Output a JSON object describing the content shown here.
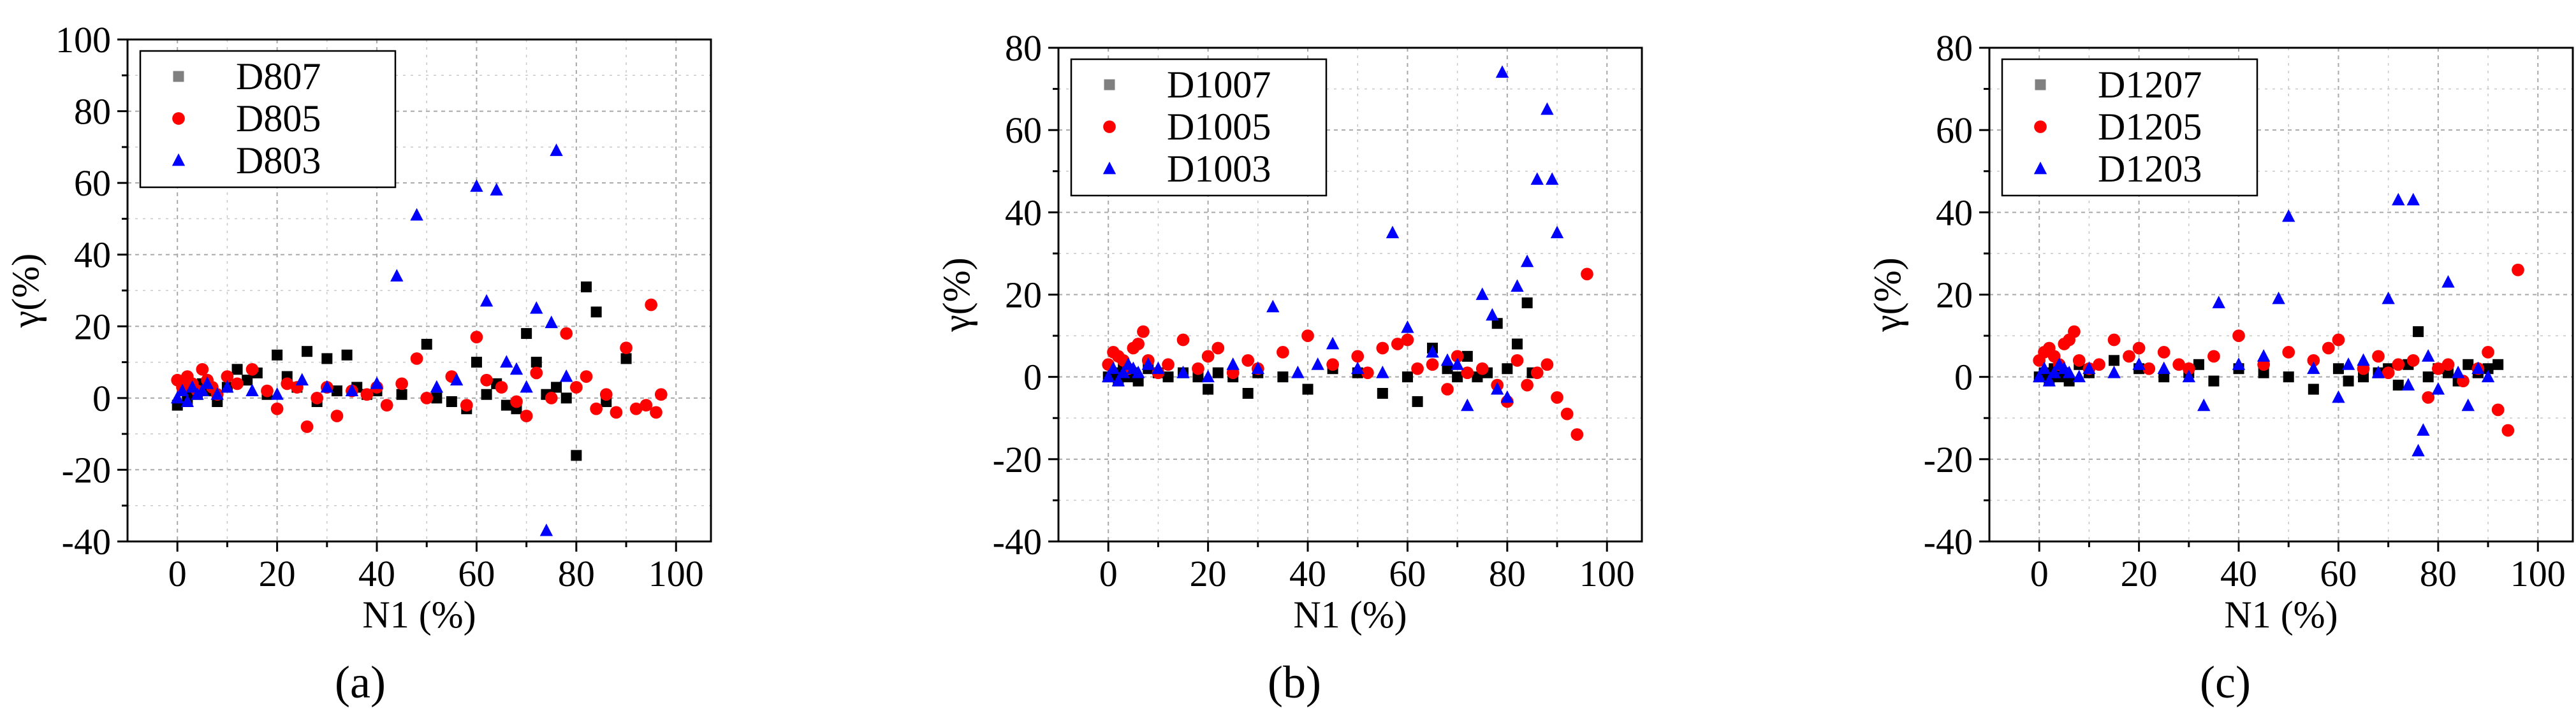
{
  "figure": {
    "panel_labels": [
      "(a)",
      "(b)",
      "(c)"
    ]
  },
  "chart_data": [
    {
      "type": "scatter",
      "panel": "(a)",
      "xlabel": "N1 (%)",
      "ylabel": "γ(%)",
      "xlim": [
        -10,
        107
      ],
      "ylim": [
        -40,
        100
      ],
      "xticks": [
        0,
        20,
        40,
        60,
        80,
        100
      ],
      "yticks": [
        -40,
        -20,
        0,
        20,
        40,
        60,
        80,
        100
      ],
      "grid": true,
      "legend": "top-left",
      "series": [
        {
          "name": "D807",
          "marker": "square",
          "color": "#000000",
          "legend_color": "#808080",
          "x": [
            0,
            1,
            2,
            3,
            4,
            5,
            6,
            8,
            10,
            12,
            14,
            16,
            18,
            20,
            22,
            24,
            26,
            28,
            30,
            32,
            34,
            36,
            38,
            40,
            45,
            50,
            52,
            55,
            58,
            60,
            62,
            64,
            66,
            68,
            70,
            72,
            74,
            76,
            78,
            80,
            82,
            84,
            86,
            90
          ],
          "y": [
            -2,
            3,
            -1,
            2,
            1,
            4,
            2,
            -1,
            3,
            8,
            5,
            7,
            1,
            12,
            6,
            3,
            13,
            -1,
            11,
            2,
            12,
            3,
            1,
            2,
            1,
            15,
            0,
            -1,
            -3,
            10,
            1,
            4,
            -2,
            -3,
            18,
            10,
            1,
            3,
            0,
            -16,
            31,
            24,
            -1,
            11
          ]
        },
        {
          "name": "D805",
          "marker": "circle",
          "color": "#ff0000",
          "legend_color": "#ff0000",
          "x": [
            0,
            1,
            2,
            3,
            4,
            5,
            6,
            7,
            8,
            10,
            12,
            15,
            18,
            20,
            22,
            24,
            26,
            28,
            30,
            32,
            35,
            38,
            40,
            42,
            45,
            48,
            50,
            55,
            58,
            60,
            62,
            65,
            68,
            70,
            72,
            75,
            78,
            80,
            82,
            84,
            86,
            88,
            90,
            92,
            94,
            95,
            96,
            97
          ],
          "y": [
            5,
            3,
            6,
            4,
            2,
            8,
            5,
            3,
            1,
            6,
            4,
            8,
            2,
            -3,
            4,
            3,
            -8,
            0,
            3,
            -5,
            2,
            1,
            3,
            -2,
            4,
            11,
            0,
            6,
            -2,
            17,
            5,
            3,
            -1,
            -5,
            7,
            0,
            18,
            3,
            6,
            -3,
            1,
            -4,
            14,
            -3,
            -2,
            26,
            -4,
            1
          ]
        },
        {
          "name": "D803",
          "marker": "triangle",
          "color": "#0000ff",
          "legend_color": "#0000ff",
          "x": [
            0,
            1,
            2,
            3,
            4,
            5,
            6,
            8,
            10,
            15,
            20,
            25,
            30,
            35,
            40,
            44,
            48,
            52,
            56,
            60,
            62,
            64,
            66,
            68,
            70,
            72,
            74,
            75,
            76,
            78
          ],
          "y": [
            0,
            2,
            -1,
            3,
            1,
            2,
            4,
            1,
            3,
            2,
            1,
            5,
            3,
            2,
            4,
            34,
            51,
            3,
            5,
            59,
            27,
            58,
            10,
            8,
            3,
            25,
            -37,
            21,
            69,
            6
          ]
        }
      ]
    },
    {
      "type": "scatter",
      "panel": "(b)",
      "xlabel": "N1 (%)",
      "ylabel": "γ(%)",
      "xlim": [
        -10,
        107
      ],
      "ylim": [
        -40,
        80
      ],
      "xticks": [
        0,
        20,
        40,
        60,
        80,
        100
      ],
      "yticks": [
        -40,
        -20,
        0,
        20,
        40,
        60,
        80
      ],
      "grid": true,
      "legend": "top-left",
      "series": [
        {
          "name": "D1007",
          "marker": "square",
          "color": "#000000",
          "legend_color": "#808080",
          "x": [
            0,
            1,
            2,
            3,
            4,
            5,
            6,
            8,
            10,
            12,
            15,
            18,
            20,
            22,
            25,
            28,
            30,
            35,
            40,
            45,
            50,
            55,
            60,
            62,
            65,
            68,
            70,
            72,
            74,
            76,
            78,
            80,
            82,
            84,
            85
          ],
          "y": [
            0,
            1,
            -1,
            2,
            0,
            1,
            -1,
            2,
            1,
            0,
            1,
            0,
            -3,
            1,
            0,
            -4,
            1,
            0,
            -3,
            2,
            1,
            -4,
            0,
            -6,
            7,
            2,
            0,
            5,
            0,
            1,
            13,
            2,
            8,
            18,
            1
          ]
        },
        {
          "name": "D1005",
          "marker": "circle",
          "color": "#ff0000",
          "legend_color": "#ff0000",
          "x": [
            0,
            1,
            2,
            3,
            4,
            5,
            6,
            7,
            8,
            10,
            12,
            15,
            18,
            20,
            22,
            25,
            28,
            30,
            35,
            40,
            45,
            50,
            52,
            55,
            58,
            60,
            62,
            65,
            68,
            70,
            72,
            75,
            78,
            80,
            82,
            84,
            86,
            88,
            90,
            92,
            94,
            96
          ],
          "y": [
            3,
            6,
            5,
            4,
            2,
            7,
            8,
            11,
            4,
            1,
            3,
            9,
            2,
            5,
            7,
            1,
            4,
            2,
            6,
            10,
            3,
            5,
            1,
            7,
            8,
            9,
            2,
            3,
            -3,
            5,
            1,
            2,
            -2,
            -6,
            4,
            -2,
            1,
            3,
            -5,
            -9,
            -14,
            25
          ]
        },
        {
          "name": "D1003",
          "marker": "triangle",
          "color": "#0000ff",
          "legend_color": "#0000ff",
          "x": [
            0,
            1,
            2,
            3,
            4,
            5,
            6,
            8,
            10,
            15,
            20,
            25,
            30,
            33,
            38,
            42,
            45,
            50,
            55,
            57,
            60,
            65,
            68,
            70,
            72,
            75,
            77,
            78,
            79,
            80,
            82,
            84,
            86,
            88,
            89,
            90
          ],
          "y": [
            0,
            2,
            -1,
            1,
            3,
            2,
            1,
            3,
            2,
            1,
            0,
            3,
            2,
            17,
            1,
            3,
            8,
            2,
            1,
            35,
            12,
            6,
            4,
            3,
            -7,
            20,
            15,
            -3,
            74,
            -5,
            22,
            28,
            48,
            65,
            48,
            35
          ]
        }
      ]
    },
    {
      "type": "scatter",
      "panel": "(c)",
      "xlabel": "N1 (%)",
      "ylabel": "γ(%)",
      "xlim": [
        -10,
        107
      ],
      "ylim": [
        -40,
        80
      ],
      "xticks": [
        0,
        20,
        40,
        60,
        80,
        100
      ],
      "yticks": [
        -40,
        -20,
        0,
        20,
        40,
        60,
        80
      ],
      "grid": true,
      "legend": "top-left",
      "series": [
        {
          "name": "D1207",
          "marker": "square",
          "color": "#000000",
          "legend_color": "#808080",
          "x": [
            0,
            1,
            2,
            3,
            4,
            5,
            6,
            8,
            10,
            15,
            20,
            25,
            30,
            32,
            35,
            40,
            45,
            50,
            55,
            60,
            62,
            65,
            68,
            70,
            72,
            74,
            76,
            78,
            80,
            82,
            84,
            86,
            88,
            90,
            92
          ],
          "y": [
            0,
            1,
            -1,
            2,
            0,
            1,
            -1,
            3,
            1,
            4,
            2,
            0,
            1,
            3,
            -1,
            2,
            1,
            0,
            -3,
            2,
            -1,
            0,
            1,
            2,
            -2,
            3,
            11,
            0,
            2,
            1,
            -1,
            3,
            1,
            2,
            3
          ]
        },
        {
          "name": "D1205",
          "marker": "circle",
          "color": "#ff0000",
          "legend_color": "#ff0000",
          "x": [
            0,
            1,
            2,
            3,
            4,
            5,
            6,
            7,
            8,
            10,
            12,
            15,
            18,
            20,
            22,
            25,
            28,
            30,
            35,
            40,
            45,
            50,
            55,
            58,
            60,
            65,
            68,
            70,
            72,
            75,
            78,
            80,
            82,
            85,
            88,
            90,
            92,
            94,
            96
          ],
          "y": [
            4,
            6,
            7,
            5,
            3,
            8,
            9,
            11,
            4,
            2,
            3,
            9,
            5,
            7,
            2,
            6,
            3,
            2,
            5,
            10,
            3,
            6,
            4,
            7,
            9,
            2,
            5,
            1,
            3,
            4,
            -5,
            2,
            3,
            -1,
            2,
            6,
            -8,
            -13,
            26
          ]
        },
        {
          "name": "D1203",
          "marker": "triangle",
          "color": "#0000ff",
          "legend_color": "#0000ff",
          "x": [
            0,
            1,
            2,
            3,
            4,
            5,
            6,
            8,
            10,
            15,
            20,
            25,
            30,
            33,
            36,
            40,
            45,
            48,
            50,
            55,
            60,
            62,
            65,
            68,
            70,
            72,
            74,
            75,
            76,
            77,
            78,
            80,
            82,
            84,
            86,
            88,
            90
          ],
          "y": [
            0,
            2,
            -1,
            1,
            3,
            2,
            1,
            0,
            2,
            1,
            3,
            2,
            0,
            -7,
            18,
            3,
            5,
            19,
            39,
            2,
            -5,
            3,
            4,
            1,
            19,
            43,
            -2,
            43,
            -18,
            -13,
            5,
            -3,
            23,
            1,
            -7,
            2,
            0
          ]
        }
      ]
    }
  ]
}
